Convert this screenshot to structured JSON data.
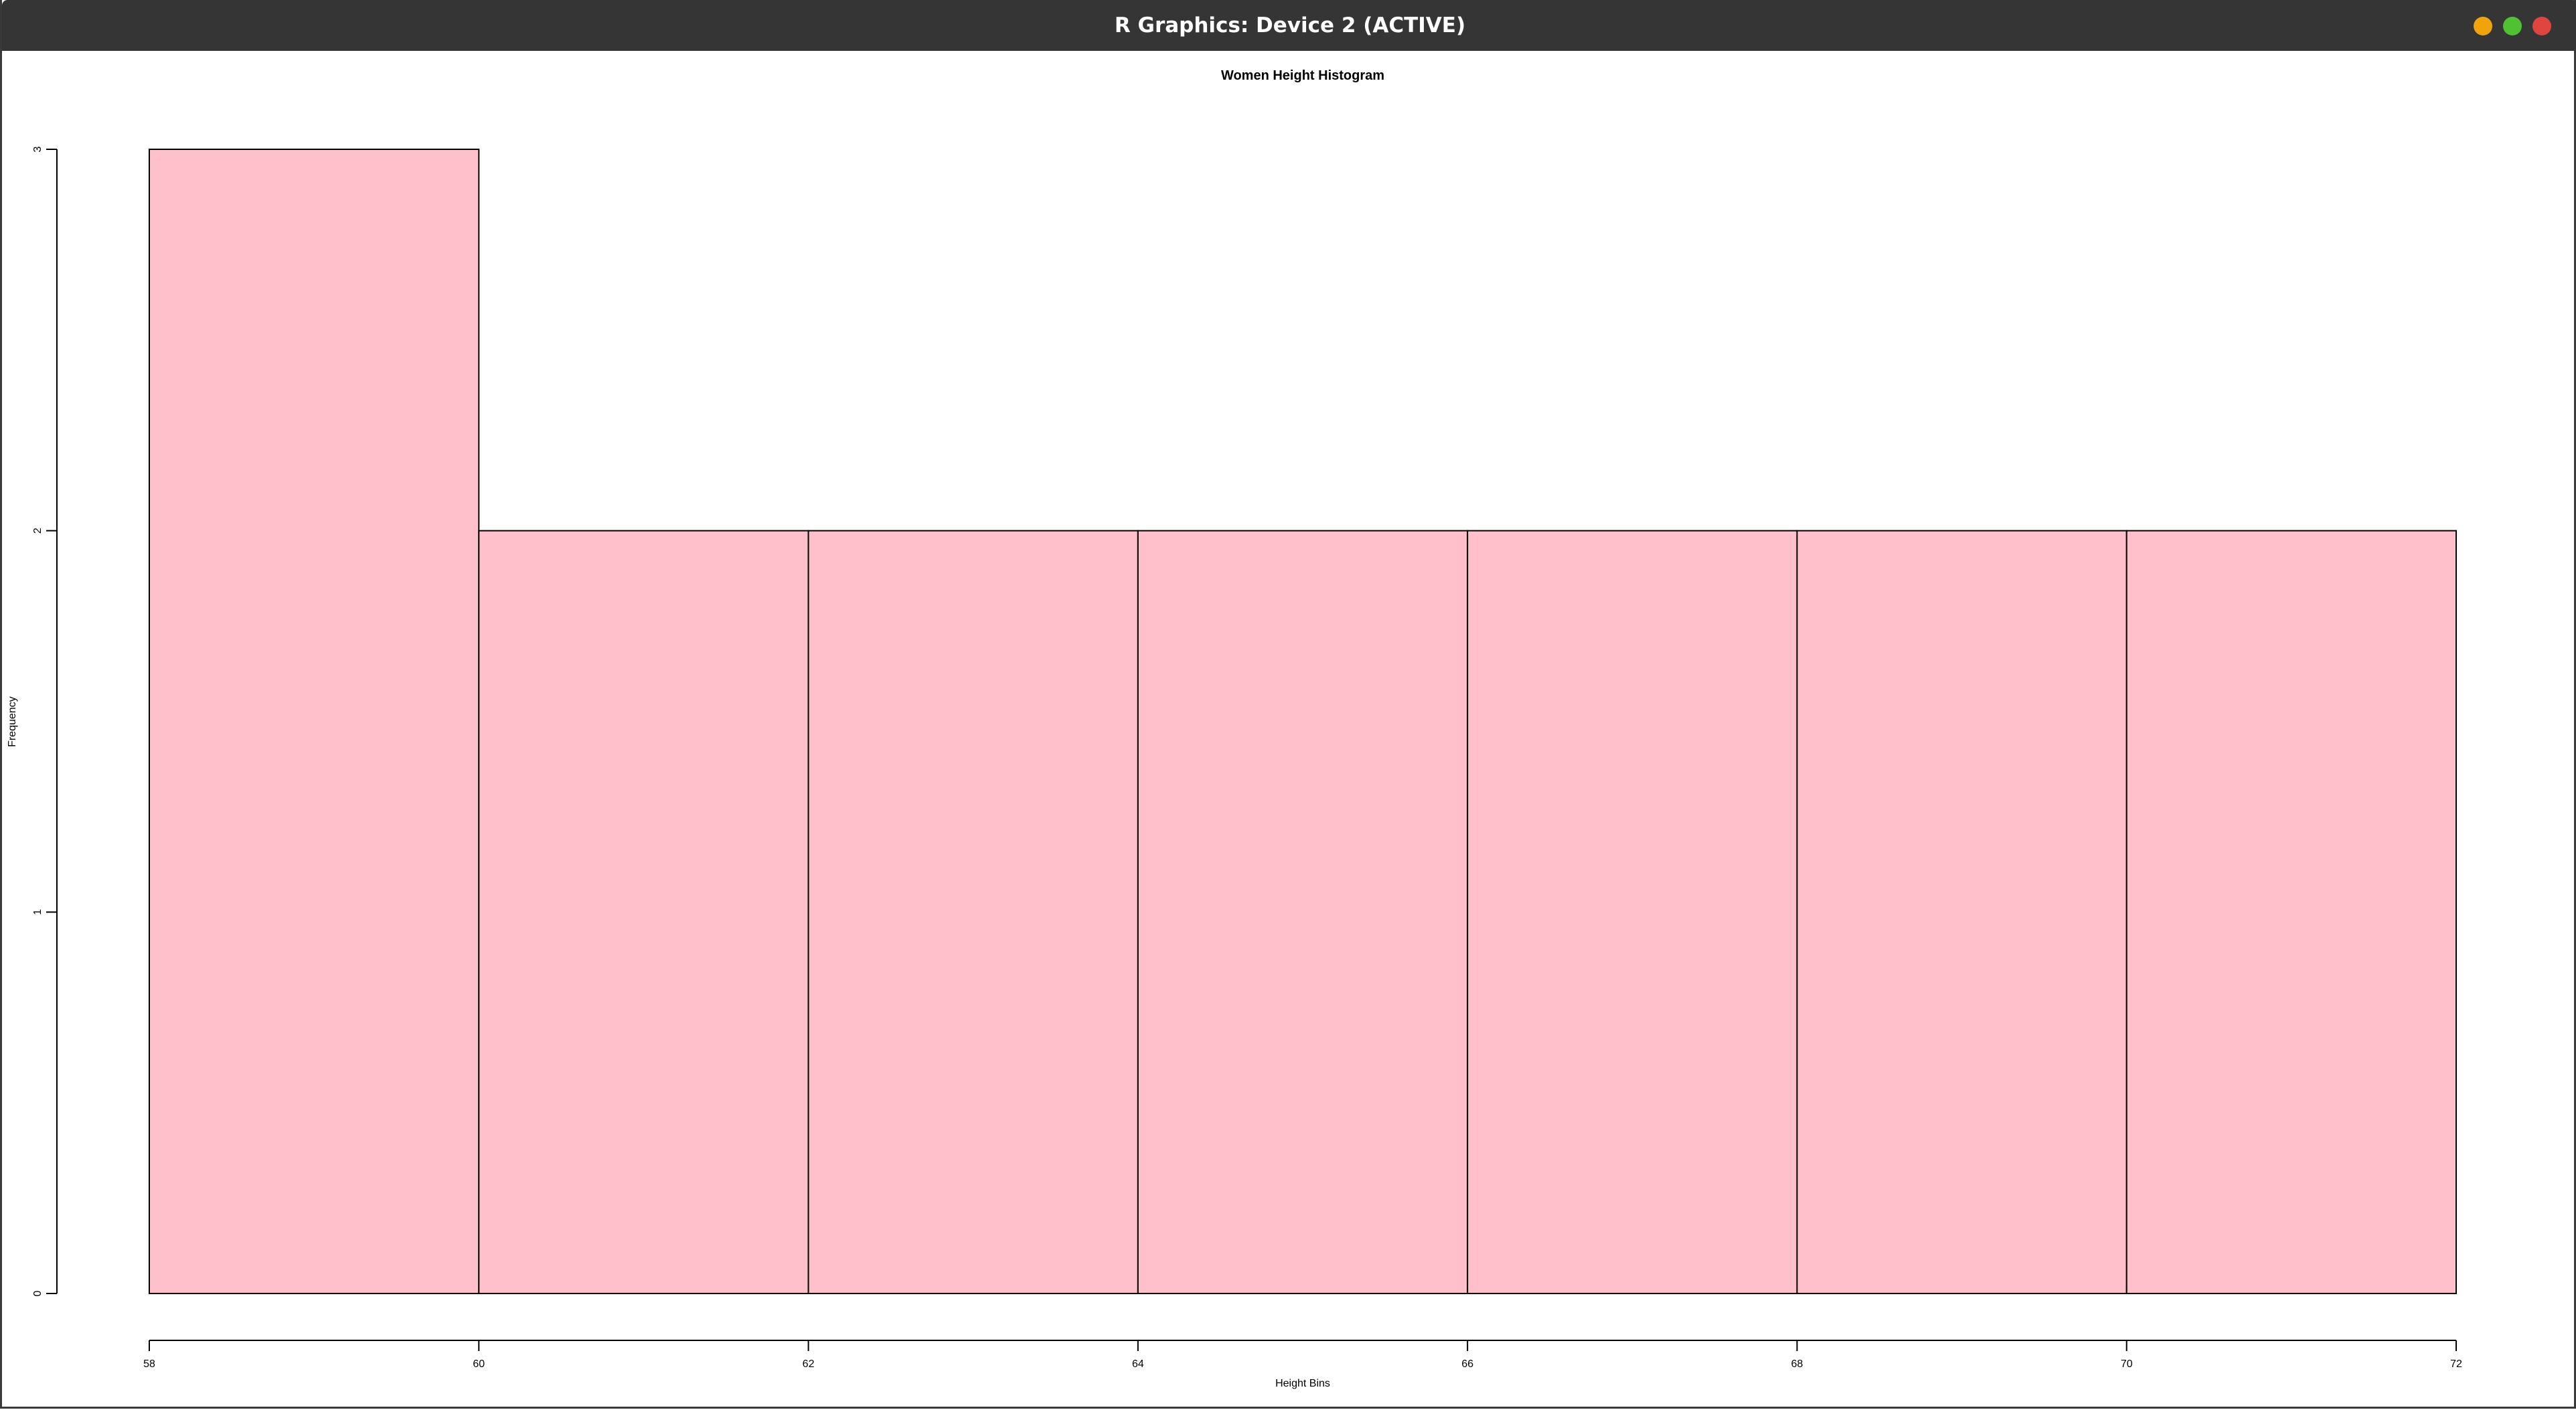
{
  "window": {
    "title": "R Graphics: Device 2 (ACTIVE)",
    "buttons": {
      "minimize_color": "#f0a30a",
      "maximize_color": "#4fc133",
      "close_color": "#e0443e"
    }
  },
  "chart_data": {
    "type": "bar",
    "title": "Women Height Histogram",
    "xlabel": "Height Bins",
    "ylabel": "Frequency",
    "bins": [
      [
        58,
        60
      ],
      [
        60,
        62
      ],
      [
        62,
        64
      ],
      [
        64,
        66
      ],
      [
        66,
        68
      ],
      [
        68,
        70
      ],
      [
        70,
        72
      ]
    ],
    "values": [
      3,
      2,
      2,
      2,
      2,
      2,
      2
    ],
    "xticks": [
      58,
      60,
      62,
      64,
      66,
      68,
      70,
      72
    ],
    "yticks": [
      0,
      1,
      2,
      3
    ],
    "xlim": [
      58,
      72
    ],
    "ylim": [
      0,
      3
    ],
    "bar_color": "#ffc0cb",
    "border_color": "#000000",
    "grid": false
  }
}
